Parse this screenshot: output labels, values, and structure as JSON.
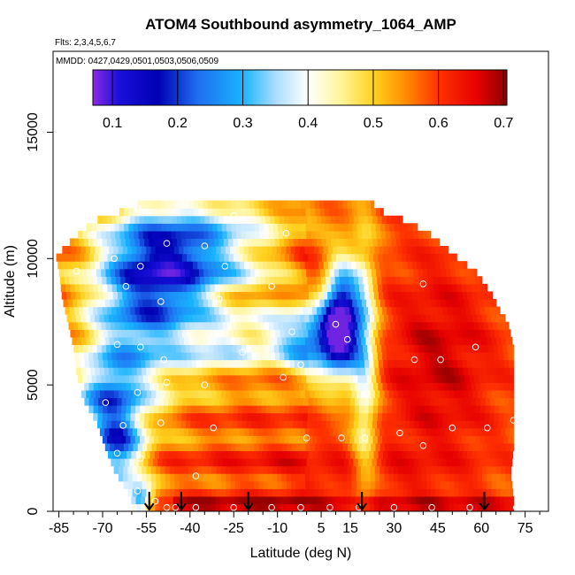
{
  "chart_data": {
    "type": "heatmap",
    "title": "ATOM4 Southbound asymmetry_1064_AMP",
    "flights_note": "Flts: 2,3,4,5,6,7",
    "dates_note": "MMDD: 0427,0429,0501,0503,0506,0509",
    "xlabel": "Latitude (deg N)",
    "ylabel": "Altitude (m)",
    "xlim": [
      -87,
      83
    ],
    "ylim": [
      0,
      18200
    ],
    "x_ticks": [
      -85,
      -70,
      -55,
      -40,
      -25,
      -10,
      5,
      15,
      30,
      45,
      60,
      75
    ],
    "x_tick_labels": [
      "-85",
      "-70",
      "-55",
      "-40",
      "-25",
      "-10",
      "5",
      "15",
      "30",
      "45",
      "60",
      "75"
    ],
    "y_ticks": [
      0,
      5000,
      10000,
      15000
    ],
    "y_tick_labels": [
      "0",
      "5000",
      "10000",
      "15000"
    ],
    "colorbar": {
      "range": [
        0.07,
        0.705
      ],
      "ticks": [
        0.1,
        0.2,
        0.3,
        0.4,
        0.5,
        0.6,
        0.7
      ],
      "tick_labels": [
        "0.1",
        "0.2",
        "0.3",
        "0.4",
        "0.5",
        "0.6",
        "0.7"
      ],
      "stops": [
        {
          "v": 0.07,
          "c": "#8a2be2"
        },
        {
          "v": 0.11,
          "c": "#1a0fd8"
        },
        {
          "v": 0.17,
          "c": "#0000b4"
        },
        {
          "v": 0.23,
          "c": "#1e6ef0"
        },
        {
          "v": 0.3,
          "c": "#19b4ff"
        },
        {
          "v": 0.35,
          "c": "#aadcff"
        },
        {
          "v": 0.4,
          "c": "#ffffff"
        },
        {
          "v": 0.45,
          "c": "#fff59a"
        },
        {
          "v": 0.5,
          "c": "#ffd21e"
        },
        {
          "v": 0.55,
          "c": "#ff8c00"
        },
        {
          "v": 0.6,
          "c": "#ff3200"
        },
        {
          "v": 0.66,
          "c": "#e60000"
        },
        {
          "v": 0.705,
          "c": "#8b0000"
        }
      ]
    },
    "arrow_latitudes": [
      -54,
      -43,
      -20,
      19,
      61
    ],
    "sample_points": [
      [
        -58,
        12000
      ],
      [
        -25,
        11700
      ],
      [
        -7,
        11000
      ],
      [
        -48,
        10600
      ],
      [
        -35,
        10500
      ],
      [
        -66,
        10000
      ],
      [
        -57,
        9700
      ],
      [
        -28,
        9700
      ],
      [
        -79,
        9500
      ],
      [
        -62,
        8900
      ],
      [
        -12,
        8900
      ],
      [
        40,
        9000
      ],
      [
        -30,
        8400
      ],
      [
        -50,
        8300
      ],
      [
        10,
        7400
      ],
      [
        -5,
        7100
      ],
      [
        14,
        6800
      ],
      [
        -70,
        6700
      ],
      [
        -65,
        6600
      ],
      [
        -57,
        6500
      ],
      [
        -49,
        6000
      ],
      [
        -22,
        6300
      ],
      [
        37,
        6000
      ],
      [
        46,
        6000
      ],
      [
        58,
        6500
      ],
      [
        -2,
        5800
      ],
      [
        -8,
        5300
      ],
      [
        -35,
        5000
      ],
      [
        -48,
        5100
      ],
      [
        -58,
        4700
      ],
      [
        -69,
        4300
      ],
      [
        -50,
        3500
      ],
      [
        -63,
        3400
      ],
      [
        -32,
        3300
      ],
      [
        -85,
        4300
      ],
      [
        -65,
        2300
      ],
      [
        -57,
        2100
      ],
      [
        -38,
        1400
      ],
      [
        0,
        2900
      ],
      [
        12,
        2900
      ],
      [
        20,
        2900
      ],
      [
        32,
        3100
      ],
      [
        40,
        2600
      ],
      [
        50,
        3300
      ],
      [
        62,
        3300
      ],
      [
        71,
        3600
      ],
      [
        -58,
        800
      ],
      [
        -52,
        400
      ],
      [
        -48,
        150
      ],
      [
        -45,
        150
      ],
      [
        -38,
        150
      ],
      [
        -25,
        150
      ],
      [
        -12,
        150
      ],
      [
        -2,
        150
      ],
      [
        8,
        150
      ],
      [
        18,
        150
      ],
      [
        30,
        150
      ],
      [
        43,
        150
      ],
      [
        56,
        150
      ],
      [
        72,
        150
      ],
      [
        75,
        10000
      ]
    ]
  }
}
